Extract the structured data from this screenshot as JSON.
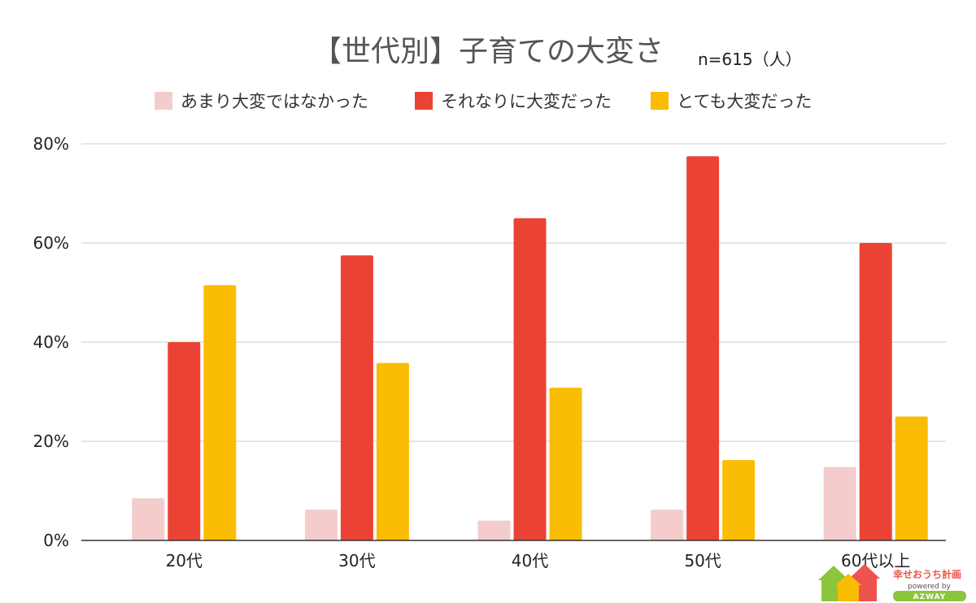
{
  "chart_data": {
    "type": "bar",
    "title": "【世代別】子育ての大変さ",
    "subtitle": "n=615（人）",
    "categories": [
      "20代",
      "30代",
      "40代",
      "50代",
      "60代以上"
    ],
    "series": [
      {
        "name": "あまり大変ではなかった",
        "color": "#f4cccc",
        "values": [
          8.5,
          6.2,
          4.0,
          6.2,
          14.8
        ]
      },
      {
        "name": "それなりに大変だった",
        "color": "#ea4335",
        "values": [
          40.0,
          57.5,
          65.0,
          77.5,
          60.0
        ]
      },
      {
        "name": "とても大変だった",
        "color": "#fbbc04",
        "values": [
          51.5,
          35.8,
          30.8,
          16.2,
          25.0
        ]
      }
    ],
    "ylim": [
      0,
      80
    ],
    "yticks": [
      "0%",
      "20%",
      "40%",
      "60%",
      "80%"
    ],
    "ytick_values": [
      0,
      20,
      40,
      60,
      80
    ],
    "grid": true,
    "legend_position": "top"
  },
  "logo": {
    "name": "幸せおうち計画",
    "powered": "powered by",
    "brand": "AZWAY"
  }
}
